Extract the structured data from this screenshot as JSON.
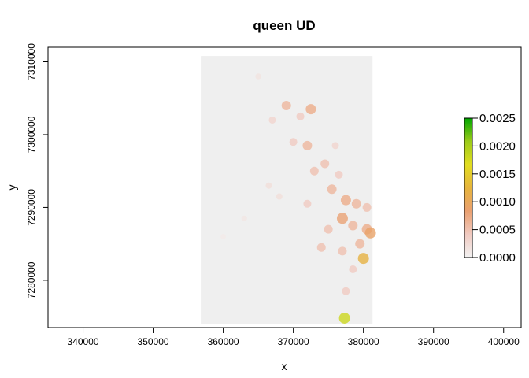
{
  "chart_data": {
    "type": "heatmap",
    "title": "queen UD",
    "xlabel": "x",
    "ylabel": "y",
    "xlim": [
      335000,
      402500
    ],
    "ylim": [
      7273500,
      7312000
    ],
    "x_ticks": [
      340000,
      350000,
      360000,
      370000,
      380000,
      390000,
      400000
    ],
    "x_tick_labels": [
      "340000",
      "350000",
      "360000",
      "370000",
      "380000",
      "390000",
      "400000"
    ],
    "y_ticks": [
      7280000,
      7290000,
      7300000,
      7310000
    ],
    "y_tick_labels": [
      "7280000",
      "7290000",
      "7300000",
      "7310000"
    ],
    "raster_extent": {
      "xmin": 356800,
      "xmax": 381300,
      "ymin": 7274000,
      "ymax": 7310800
    },
    "raster_background": "#efefef",
    "legend": {
      "position": "right",
      "min": 0,
      "max": 0.0025,
      "ticks": [
        0,
        0.0005,
        0.001,
        0.0015,
        0.002,
        0.0025
      ],
      "tick_labels": [
        "0.0000",
        "0.0005",
        "0.0010",
        "0.0015",
        "0.0020",
        "0.0025"
      ],
      "colors": [
        "#f2f2f2",
        "#f0c9c0",
        "#eaa070",
        "#e6b43c",
        "#e2dd20",
        "#9ccb19",
        "#00a600"
      ]
    },
    "hotspots": [
      {
        "x": 365000,
        "y": 7308000,
        "v": 0.00015
      },
      {
        "x": 367000,
        "y": 7302000,
        "v": 0.0003
      },
      {
        "x": 369000,
        "y": 7304000,
        "v": 0.0006
      },
      {
        "x": 371000,
        "y": 7302500,
        "v": 0.0004
      },
      {
        "x": 372500,
        "y": 7303500,
        "v": 0.0007
      },
      {
        "x": 370000,
        "y": 7299000,
        "v": 0.0004
      },
      {
        "x": 372000,
        "y": 7298500,
        "v": 0.0006
      },
      {
        "x": 374500,
        "y": 7296000,
        "v": 0.0005
      },
      {
        "x": 373000,
        "y": 7295000,
        "v": 0.0005
      },
      {
        "x": 376500,
        "y": 7294500,
        "v": 0.0004
      },
      {
        "x": 376000,
        "y": 7298500,
        "v": 0.0003
      },
      {
        "x": 375500,
        "y": 7292500,
        "v": 0.0006
      },
      {
        "x": 377500,
        "y": 7291000,
        "v": 0.0007
      },
      {
        "x": 379000,
        "y": 7290500,
        "v": 0.0006
      },
      {
        "x": 380500,
        "y": 7290000,
        "v": 0.0005
      },
      {
        "x": 377000,
        "y": 7288500,
        "v": 0.0008
      },
      {
        "x": 375000,
        "y": 7287000,
        "v": 0.0005
      },
      {
        "x": 378500,
        "y": 7287500,
        "v": 0.0006
      },
      {
        "x": 380500,
        "y": 7287000,
        "v": 0.0007
      },
      {
        "x": 381000,
        "y": 7286500,
        "v": 0.0009
      },
      {
        "x": 374000,
        "y": 7284500,
        "v": 0.0005
      },
      {
        "x": 377000,
        "y": 7284000,
        "v": 0.0005
      },
      {
        "x": 379500,
        "y": 7285000,
        "v": 0.0006
      },
      {
        "x": 378500,
        "y": 7281500,
        "v": 0.0004
      },
      {
        "x": 377500,
        "y": 7278500,
        "v": 0.0004
      },
      {
        "x": 372000,
        "y": 7290500,
        "v": 0.0004
      },
      {
        "x": 368000,
        "y": 7291500,
        "v": 0.0002
      },
      {
        "x": 363000,
        "y": 7288500,
        "v": 0.00012
      },
      {
        "x": 360000,
        "y": 7286000,
        "v": 8e-05
      },
      {
        "x": 366500,
        "y": 7293000,
        "v": 0.0002
      },
      {
        "x": 380000,
        "y": 7283000,
        "v": 0.0012
      },
      {
        "x": 377300,
        "y": 7274800,
        "v": 0.0018
      }
    ]
  }
}
